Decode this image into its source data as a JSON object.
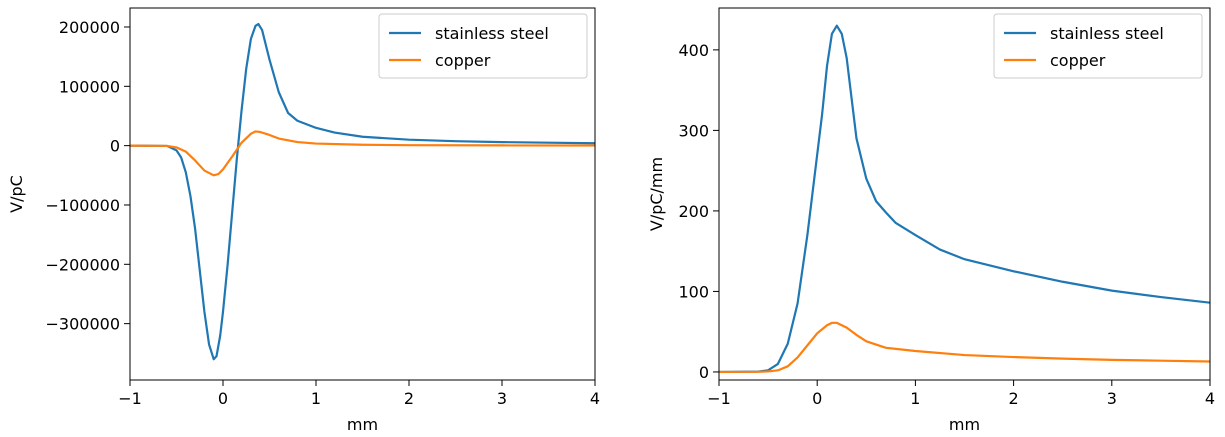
{
  "chart_data": [
    {
      "type": "line",
      "xlabel": "mm",
      "ylabel": "V/pC",
      "xlim": [
        -1,
        4
      ],
      "ylim": [
        -395000,
        232000
      ],
      "x_ticks": [
        "−1",
        "0",
        "1",
        "2",
        "3",
        "4"
      ],
      "y_ticks": [
        "−300000",
        "−200000",
        "−100000",
        "0",
        "100000",
        "200000"
      ],
      "y_tick_values": [
        -300000,
        -200000,
        -100000,
        0,
        100000,
        200000
      ],
      "legend_position": "top-right",
      "series": [
        {
          "name": "stainless steel",
          "color": "#1f77b4",
          "points": [
            [
              -1,
              0
            ],
            [
              -0.6,
              -500
            ],
            [
              -0.5,
              -8000
            ],
            [
              -0.45,
              -20000
            ],
            [
              -0.4,
              -45000
            ],
            [
              -0.35,
              -85000
            ],
            [
              -0.3,
              -140000
            ],
            [
              -0.25,
              -210000
            ],
            [
              -0.2,
              -280000
            ],
            [
              -0.15,
              -335000
            ],
            [
              -0.1,
              -360000
            ],
            [
              -0.07,
              -355000
            ],
            [
              -0.03,
              -320000
            ],
            [
              0,
              -280000
            ],
            [
              0.05,
              -200000
            ],
            [
              0.1,
              -110000
            ],
            [
              0.15,
              -20000
            ],
            [
              0.2,
              60000
            ],
            [
              0.25,
              130000
            ],
            [
              0.3,
              180000
            ],
            [
              0.35,
              202000
            ],
            [
              0.38,
              205000
            ],
            [
              0.42,
              195000
            ],
            [
              0.5,
              145000
            ],
            [
              0.6,
              90000
            ],
            [
              0.7,
              55000
            ],
            [
              0.8,
              42000
            ],
            [
              1,
              30000
            ],
            [
              1.2,
              22000
            ],
            [
              1.5,
              15000
            ],
            [
              2,
              10000
            ],
            [
              2.5,
              7500
            ],
            [
              3,
              6000
            ],
            [
              3.5,
              5000
            ],
            [
              4,
              4000
            ]
          ]
        },
        {
          "name": "copper",
          "color": "#ff7f0e",
          "points": [
            [
              -1,
              0
            ],
            [
              -0.6,
              -500
            ],
            [
              -0.5,
              -3000
            ],
            [
              -0.4,
              -10000
            ],
            [
              -0.3,
              -25000
            ],
            [
              -0.2,
              -42000
            ],
            [
              -0.1,
              -50000
            ],
            [
              -0.05,
              -48000
            ],
            [
              0,
              -40000
            ],
            [
              0.1,
              -18000
            ],
            [
              0.2,
              5000
            ],
            [
              0.3,
              20000
            ],
            [
              0.35,
              24000
            ],
            [
              0.4,
              23000
            ],
            [
              0.5,
              18000
            ],
            [
              0.6,
              12000
            ],
            [
              0.8,
              6000
            ],
            [
              1,
              3500
            ],
            [
              1.5,
              1500
            ],
            [
              2,
              800
            ],
            [
              3,
              400
            ],
            [
              4,
              300
            ]
          ]
        }
      ]
    },
    {
      "type": "line",
      "xlabel": "mm",
      "ylabel": "V/pC/mm",
      "xlim": [
        -1,
        4
      ],
      "ylim": [
        -10,
        452
      ],
      "x_ticks": [
        "−1",
        "0",
        "1",
        "2",
        "3",
        "4"
      ],
      "y_ticks": [
        "0",
        "100",
        "200",
        "300",
        "400"
      ],
      "y_tick_values": [
        0,
        100,
        200,
        300,
        400
      ],
      "legend_position": "top-right",
      "series": [
        {
          "name": "stainless steel",
          "color": "#1f77b4",
          "points": [
            [
              -1,
              0
            ],
            [
              -0.6,
              0.5
            ],
            [
              -0.5,
              2
            ],
            [
              -0.4,
              10
            ],
            [
              -0.3,
              35
            ],
            [
              -0.2,
              85
            ],
            [
              -0.1,
              170
            ],
            [
              0,
              270
            ],
            [
              0.05,
              320
            ],
            [
              0.1,
              380
            ],
            [
              0.15,
              420
            ],
            [
              0.2,
              430
            ],
            [
              0.25,
              420
            ],
            [
              0.3,
              390
            ],
            [
              0.35,
              340
            ],
            [
              0.4,
              290
            ],
            [
              0.5,
              240
            ],
            [
              0.6,
              212
            ],
            [
              0.7,
              198
            ],
            [
              0.8,
              185
            ],
            [
              1,
              170
            ],
            [
              1.25,
              152
            ],
            [
              1.5,
              140
            ],
            [
              2,
              125
            ],
            [
              2.5,
              112
            ],
            [
              3,
              101
            ],
            [
              3.5,
              93
            ],
            [
              4,
              86
            ]
          ]
        },
        {
          "name": "copper",
          "color": "#ff7f0e",
          "points": [
            [
              -1,
              0
            ],
            [
              -0.6,
              0.2
            ],
            [
              -0.5,
              0.6
            ],
            [
              -0.4,
              2
            ],
            [
              -0.3,
              7
            ],
            [
              -0.2,
              18
            ],
            [
              -0.1,
              33
            ],
            [
              0,
              48
            ],
            [
              0.1,
              58
            ],
            [
              0.15,
              61
            ],
            [
              0.2,
              61
            ],
            [
              0.3,
              55
            ],
            [
              0.4,
              46
            ],
            [
              0.5,
              38
            ],
            [
              0.7,
              30
            ],
            [
              1,
              26
            ],
            [
              1.5,
              21
            ],
            [
              2,
              18.5
            ],
            [
              2.5,
              16.5
            ],
            [
              3,
              15
            ],
            [
              3.5,
              14
            ],
            [
              4,
              13
            ]
          ]
        }
      ]
    }
  ]
}
